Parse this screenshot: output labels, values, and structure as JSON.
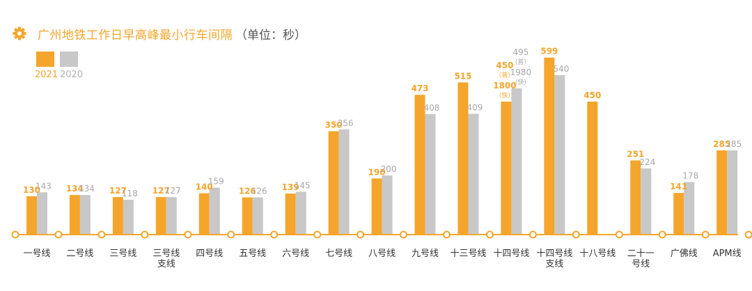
{
  "title": "广州地铁工作日早高峰最小行车间隔",
  "unit": "（单位：秒）",
  "colors": {
    "y2021": "#f5a52b",
    "y2020": "#c8c8c8",
    "axis": "#f5a52b",
    "label2020": "#a8a8a8"
  },
  "icons": {
    "title_icon": "gear-icon"
  },
  "legend": [
    {
      "label": "2021",
      "color": "#f5a52b"
    },
    {
      "label": "2020",
      "color": "#c8c8c8"
    }
  ],
  "chart_data": {
    "type": "bar",
    "title": "广州地铁工作日早高峰最小行车间隔",
    "unit": "（单位：秒）",
    "ylim": [
      0,
      620
    ],
    "grid": false,
    "legend_position": "top-left",
    "categories": [
      "一号线",
      "二号线",
      "三号线",
      "三号线\n支线",
      "四号线",
      "五号线",
      "六号线",
      "七号线",
      "八号线",
      "九号线",
      "十三号线",
      "十四号线",
      "十四号线\n支线",
      "十八号线",
      "二十一\n号线",
      "广佛线",
      "APM线"
    ],
    "series": [
      {
        "name": "2021",
        "values": [
          130,
          134,
          127,
          127,
          140,
          126,
          139,
          350,
          190,
          473,
          515,
          450,
          599,
          450,
          251,
          141,
          285
        ]
      },
      {
        "name": "2020",
        "values": [
          143,
          134,
          118,
          127,
          159,
          126,
          145,
          356,
          200,
          408,
          409,
          495,
          540,
          null,
          224,
          178,
          285
        ]
      }
    ],
    "annotations": [
      {
        "category": "十四号线",
        "series": "2021",
        "lines": [
          "450",
          "（普）",
          "1800",
          "（快）"
        ]
      },
      {
        "category": "十四号线",
        "series": "2020",
        "lines": [
          "495",
          "（普）",
          "1980",
          "（快）"
        ]
      }
    ]
  }
}
